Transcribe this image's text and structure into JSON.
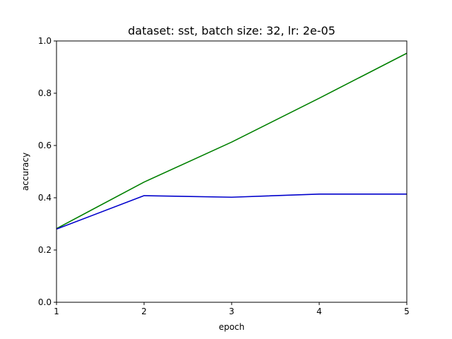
{
  "chart_data": {
    "type": "line",
    "title": "dataset: sst, batch size: 32, lr: 2e-05",
    "xlabel": "epoch",
    "ylabel": "accuracy",
    "x": [
      1,
      2,
      3,
      4,
      5
    ],
    "xlim": [
      1,
      5
    ],
    "ylim": [
      0.0,
      1.0
    ],
    "xticks": [
      "1",
      "2",
      "3",
      "4",
      "5"
    ],
    "yticks": [
      "0.0",
      "0.2",
      "0.4",
      "0.6",
      "0.8",
      "1.0"
    ],
    "grid": false,
    "series": [
      {
        "values": [
          0.282,
          0.46,
          0.613,
          0.781,
          0.953
        ],
        "color": "#008000"
      },
      {
        "values": [
          0.28,
          0.408,
          0.402,
          0.414,
          0.414
        ],
        "color": "#0000cc"
      }
    ]
  }
}
